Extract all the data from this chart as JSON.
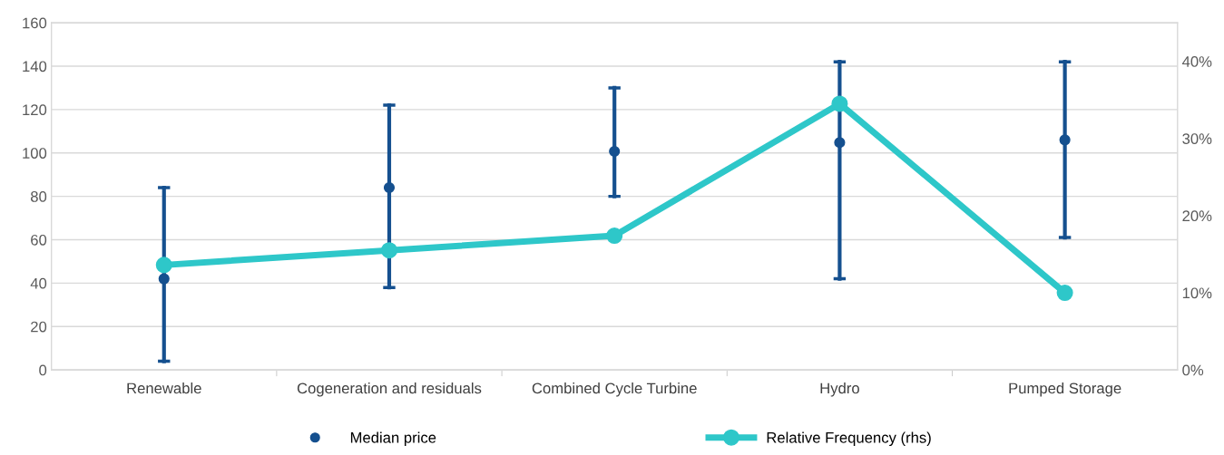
{
  "chart_data": {
    "type": "scatter",
    "categories": [
      "Renewable",
      "Cogeneration and residuals",
      "Combined Cycle Turbine",
      "Hydro",
      "Pumped Storage"
    ],
    "series": [
      {
        "name": "Median price",
        "color": "#15508f",
        "values": [
          42,
          84,
          100.7,
          104.8,
          106
        ],
        "errors": [
          [
            4,
            84
          ],
          [
            38,
            122
          ],
          [
            80,
            130
          ],
          [
            42,
            142
          ],
          [
            61,
            142
          ]
        ],
        "marker": "circle"
      },
      {
        "name": "Relative Frequency (rhs)",
        "type": "line",
        "axis": "y2",
        "color": "#2ec7c9",
        "values": [
          13.6,
          15.5,
          17.4,
          34.5,
          10.0
        ],
        "marker": "circle",
        "line_style": "solid"
      }
    ],
    "ylim": [
      0,
      160
    ],
    "yticks": [
      0,
      20,
      40,
      60,
      80,
      100,
      120,
      140,
      160
    ],
    "y2lim": [
      0,
      45
    ],
    "y2ticks": [
      {
        "value": 0,
        "label": "0%"
      },
      {
        "value": 10,
        "label": "10%"
      },
      {
        "value": 20,
        "label": "20%"
      },
      {
        "value": 30,
        "label": "30%"
      },
      {
        "value": 40,
        "label": "40%"
      }
    ],
    "grid": "y",
    "legend": "bottom"
  }
}
